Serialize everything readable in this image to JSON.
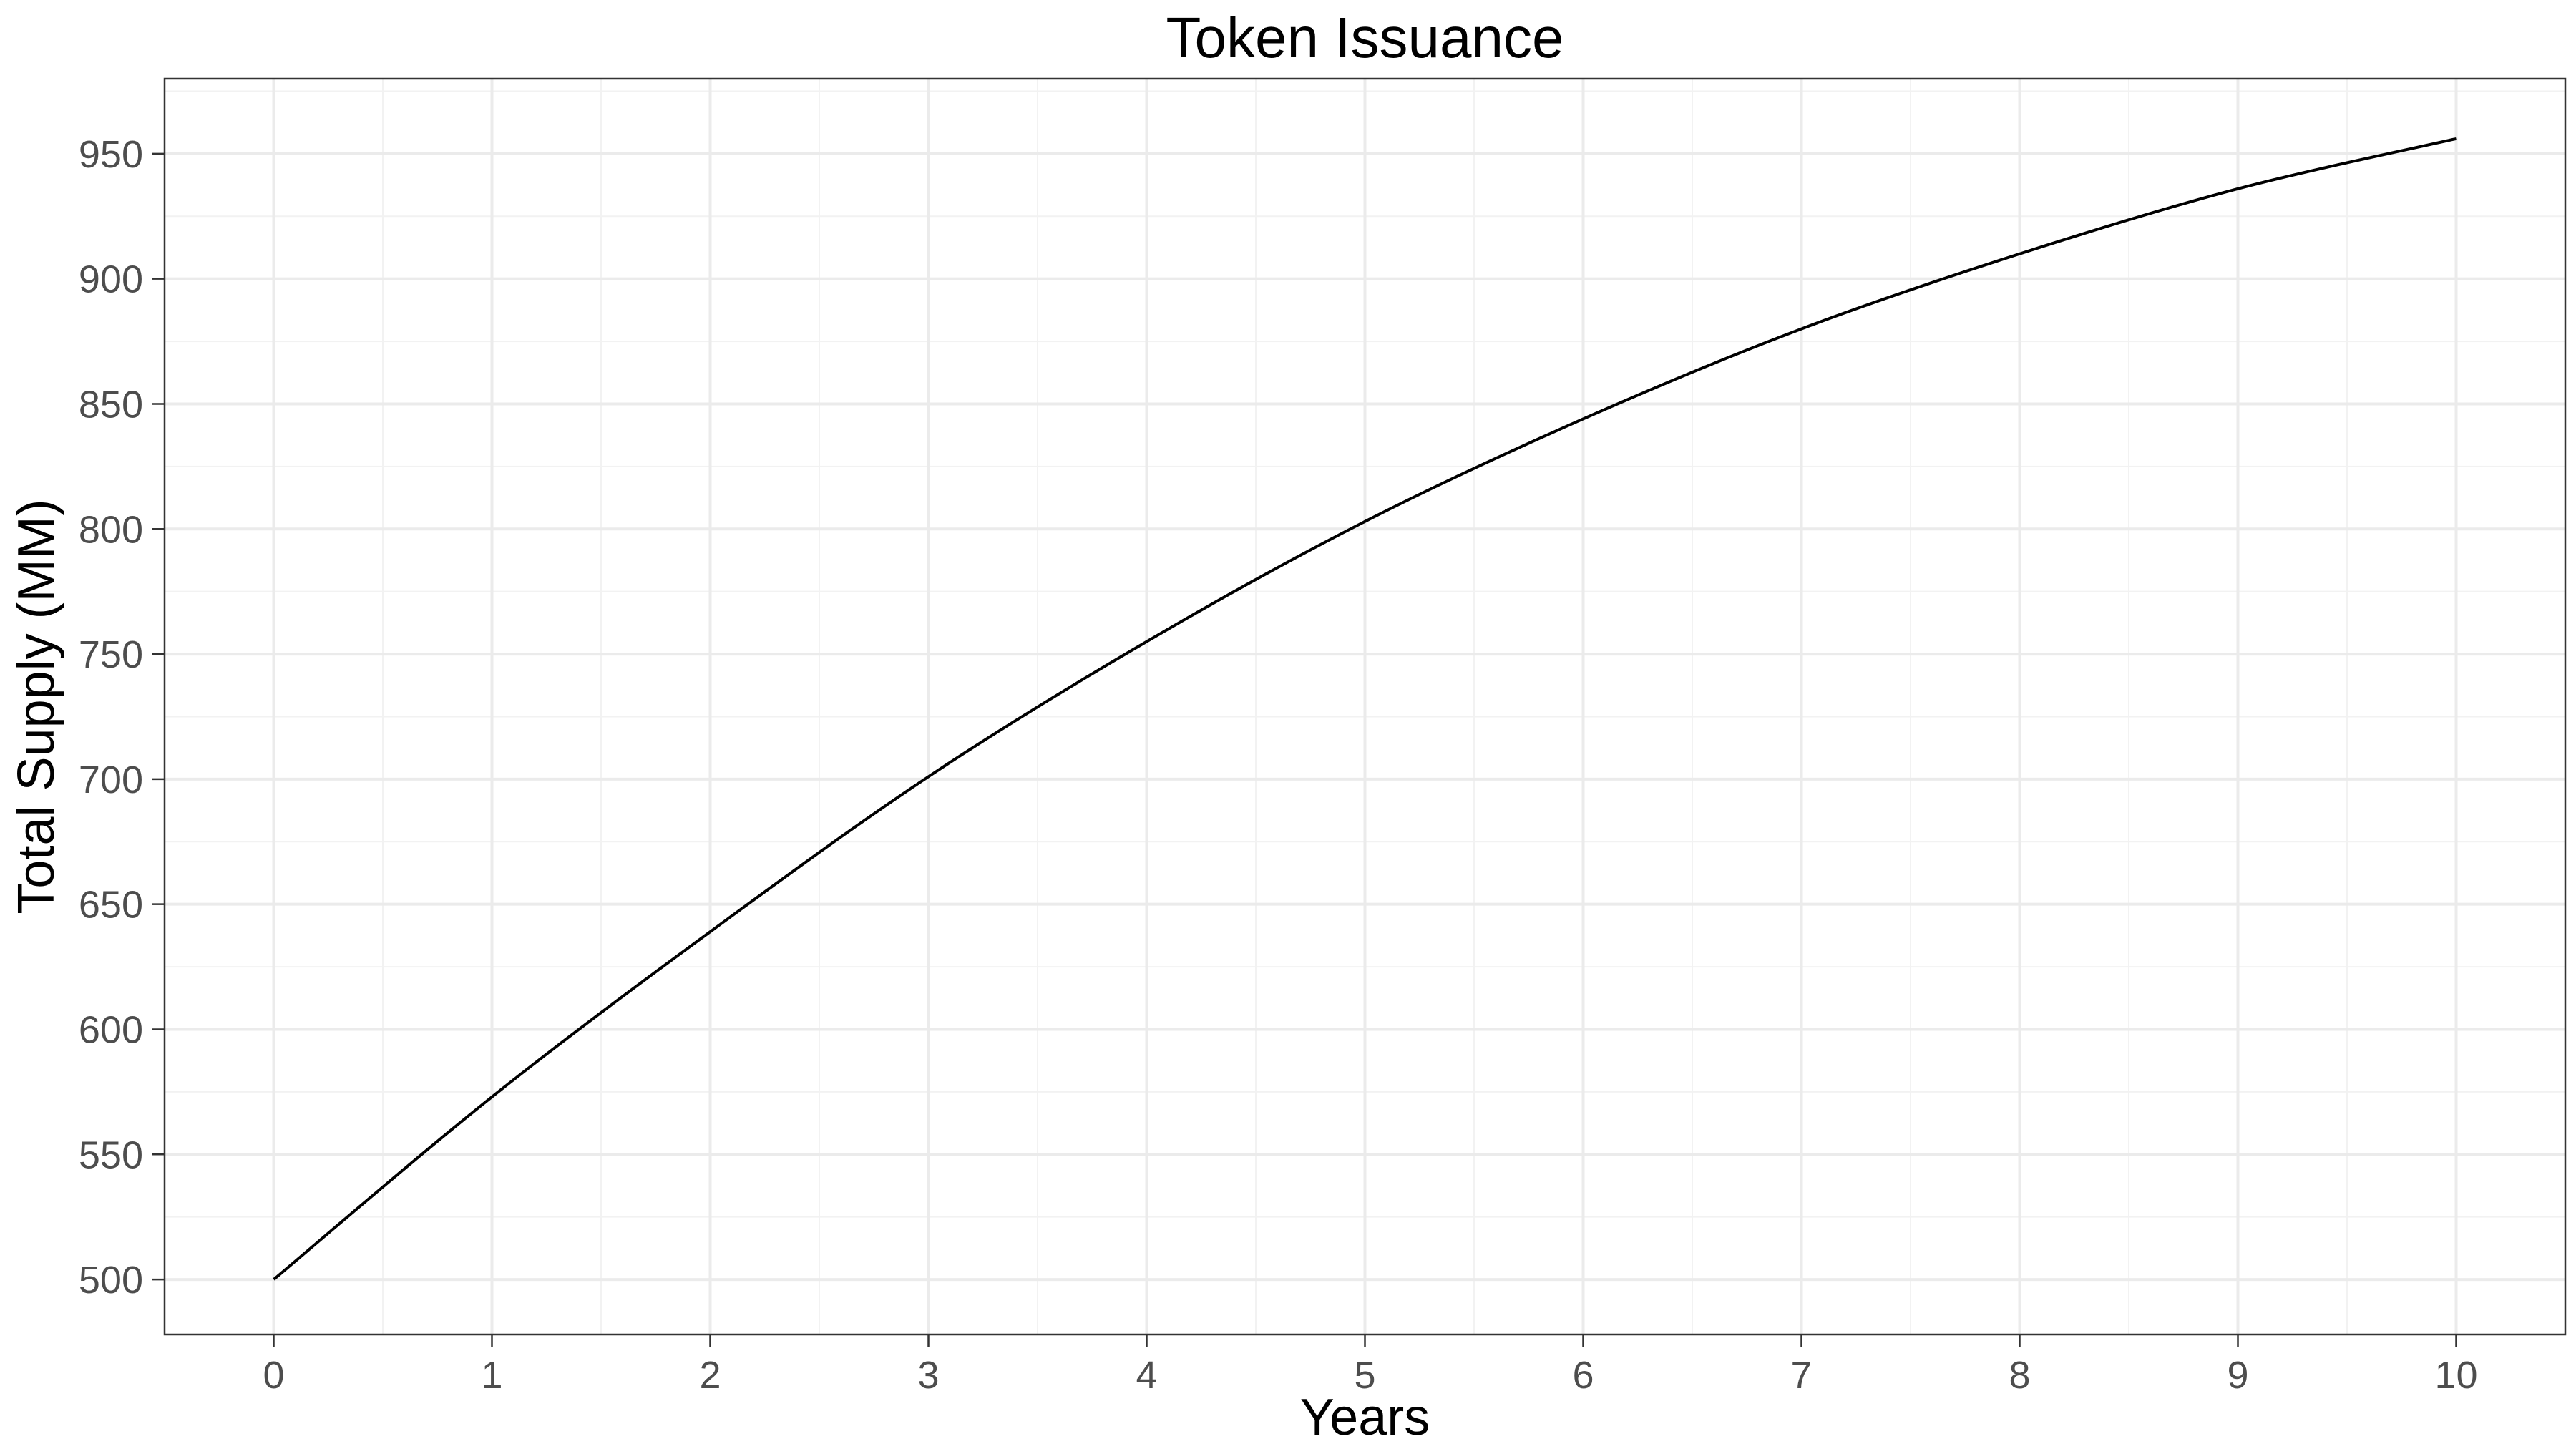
{
  "chart_data": {
    "type": "line",
    "title": "Token Issuance",
    "xlabel": "Years",
    "ylabel": "Total Supply (MM)",
    "xlim": [
      -0.5,
      10.5
    ],
    "ylim": [
      478,
      980
    ],
    "x_ticks": [
      0,
      1,
      2,
      3,
      4,
      5,
      6,
      7,
      8,
      9,
      10
    ],
    "y_ticks": [
      500,
      550,
      600,
      650,
      700,
      750,
      800,
      850,
      900,
      950
    ],
    "grid": true,
    "legend": "none",
    "line_color": "#000000",
    "series": [
      {
        "x": [
          0,
          1,
          2,
          3,
          4,
          5,
          6,
          7,
          8,
          9,
          10
        ],
        "values": [
          500,
          573,
          639,
          701,
          755,
          803,
          844,
          880,
          910,
          936,
          956
        ]
      }
    ]
  }
}
